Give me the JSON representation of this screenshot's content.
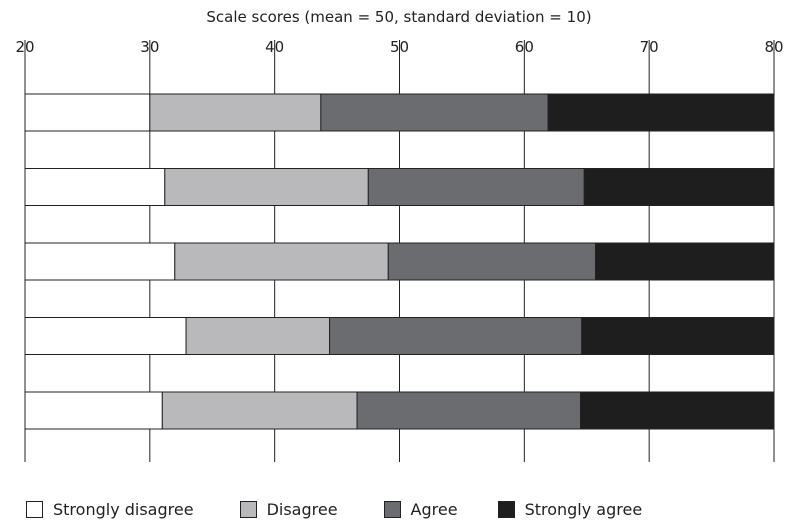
{
  "chart_data": {
    "type": "bar",
    "orientation": "horizontal",
    "stacked": true,
    "title": "Scale scores (mean = 50, standard deviation = 10)",
    "xlim": [
      20,
      80
    ],
    "xticks": [
      20,
      30,
      40,
      50,
      60,
      70,
      80
    ],
    "xtick_labels": [
      "20",
      "30",
      "40",
      "50",
      "60",
      "70",
      "80"
    ],
    "xaxis_position": "top",
    "grid": "vertical",
    "categories": [
      "",
      "",
      "",
      "",
      ""
    ],
    "boundaries": [
      [
        20,
        30.0,
        43.7,
        61.9,
        80
      ],
      [
        20,
        31.2,
        47.5,
        64.8,
        80
      ],
      [
        20,
        32.0,
        49.1,
        65.7,
        80
      ],
      [
        20,
        32.9,
        44.4,
        64.6,
        80
      ],
      [
        20,
        31.0,
        46.6,
        64.5,
        80
      ]
    ],
    "series": [
      {
        "name": "Strongly disagree",
        "color": "#ffffff"
      },
      {
        "name": "Disagree",
        "color": "#b9b9bb"
      },
      {
        "name": "Agree",
        "color": "#6b6c6f"
      },
      {
        "name": "Strongly agree",
        "color": "#1e1e1f"
      }
    ],
    "legend_position": "bottom"
  }
}
